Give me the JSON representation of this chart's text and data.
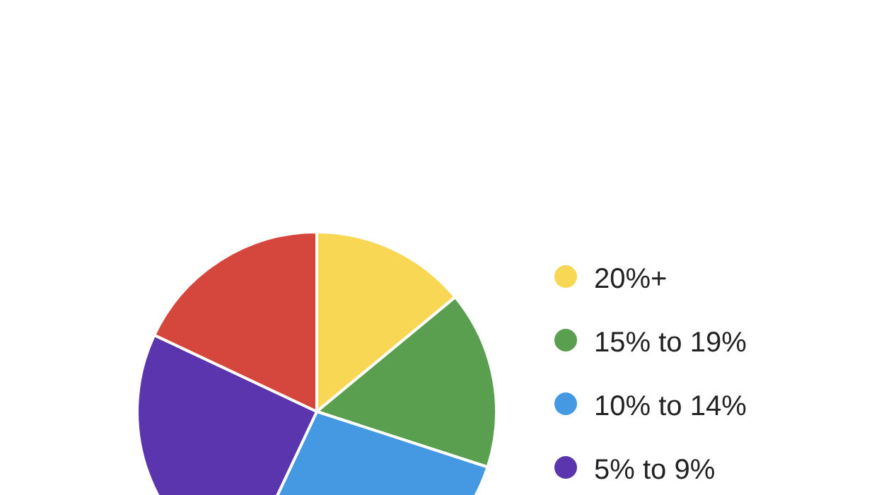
{
  "chart_data": {
    "type": "pie",
    "categories": [
      "20%+",
      "15% to 19%",
      "10% to 14%",
      "5% to 9%",
      null
    ],
    "values": [
      14,
      16,
      27,
      25,
      18
    ],
    "colors": [
      "#f7d754",
      "#5a9e4f",
      "#4599e3",
      "#5a35ad",
      "#d5463c"
    ],
    "legend": "right"
  }
}
